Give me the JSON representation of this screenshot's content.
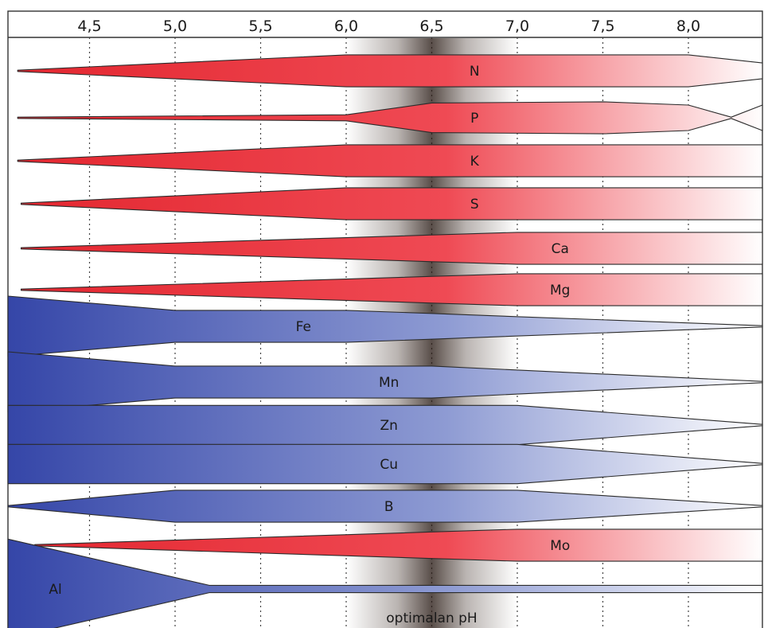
{
  "chart_data": {
    "type": "area",
    "title": "",
    "xlabel": "",
    "ylabel": "",
    "xlim": [
      4.0,
      8.45
    ],
    "x_ticks": [
      4.5,
      5.0,
      5.5,
      6.0,
      6.5,
      7.0,
      7.5,
      8.0
    ],
    "x_tick_labels": [
      "4,5",
      "5,0",
      "5,5",
      "6,0",
      "6,5",
      "7,0",
      "7,5",
      "8,0"
    ],
    "optimal_band": {
      "from": 6.0,
      "to": 7.0,
      "center": 6.5,
      "label": "optimalan pH"
    },
    "grid": "dotted vertical lines at each tick",
    "colors": {
      "macro": "#e8323c",
      "micro": "#3a4fb0",
      "band": "#3a2a22"
    },
    "series": [
      {
        "name": "N",
        "group": "macro",
        "label_x": 6.75,
        "points": [
          [
            4.08,
            0.02
          ],
          [
            6.0,
            0.53
          ],
          [
            8.0,
            0.53
          ],
          [
            8.45,
            0.26
          ]
        ]
      },
      {
        "name": "P",
        "group": "macro",
        "label_x": 6.75,
        "points": [
          [
            4.08,
            0.02
          ],
          [
            6.0,
            0.1
          ],
          [
            6.5,
            0.49
          ],
          [
            7.5,
            0.53
          ],
          [
            8.0,
            0.42
          ],
          [
            8.25,
            0.02
          ],
          [
            8.45,
            0.42
          ]
        ]
      },
      {
        "name": "K",
        "group": "macro",
        "label_x": 6.75,
        "points": [
          [
            4.08,
            0.02
          ],
          [
            6.0,
            0.53
          ],
          [
            8.45,
            0.53
          ]
        ]
      },
      {
        "name": "S",
        "group": "macro",
        "label_x": 6.75,
        "points": [
          [
            4.1,
            0.02
          ],
          [
            6.0,
            0.53
          ],
          [
            8.45,
            0.53
          ]
        ]
      },
      {
        "name": "Ca",
        "group": "macro",
        "label_x": 7.25,
        "points": [
          [
            4.1,
            0.02
          ],
          [
            7.0,
            0.53
          ],
          [
            8.45,
            0.53
          ]
        ]
      },
      {
        "name": "Mg",
        "group": "macro",
        "label_x": 7.25,
        "points": [
          [
            4.1,
            0.02
          ],
          [
            7.0,
            0.53
          ],
          [
            8.45,
            0.53
          ]
        ]
      },
      {
        "name": "Fe",
        "group": "micro",
        "label_x": 5.75,
        "points": [
          [
            4.0,
            1.0
          ],
          [
            5.0,
            0.53
          ],
          [
            6.0,
            0.53
          ],
          [
            8.45,
            0.02
          ]
        ]
      },
      {
        "name": "Mn",
        "group": "micro",
        "label_x": 6.25,
        "points": [
          [
            4.0,
            1.0
          ],
          [
            5.0,
            0.53
          ],
          [
            6.5,
            0.53
          ],
          [
            8.45,
            0.02
          ]
        ]
      },
      {
        "name": "Zn",
        "group": "micro",
        "label_x": 6.25,
        "points": [
          [
            4.0,
            0.65
          ],
          [
            7.0,
            0.65
          ],
          [
            8.45,
            0.02
          ]
        ]
      },
      {
        "name": "Cu",
        "group": "micro",
        "label_x": 6.25,
        "points": [
          [
            4.0,
            0.65
          ],
          [
            7.0,
            0.65
          ],
          [
            8.45,
            0.02
          ]
        ]
      },
      {
        "name": "B",
        "group": "micro",
        "label_x": 6.25,
        "points": [
          [
            4.0,
            0.02
          ],
          [
            5.0,
            0.53
          ],
          [
            7.0,
            0.53
          ],
          [
            8.45,
            0.02
          ]
        ]
      },
      {
        "name": "Mo",
        "group": "macro",
        "label_x": 7.25,
        "points": [
          [
            4.18,
            0.02
          ],
          [
            7.0,
            0.53
          ],
          [
            8.45,
            0.53
          ]
        ]
      },
      {
        "name": "Al",
        "group": "micro",
        "label_x": 4.3,
        "label_position": "below",
        "points": [
          [
            4.0,
            1.65
          ],
          [
            5.2,
            0.12
          ],
          [
            8.45,
            0.12
          ]
        ]
      }
    ]
  }
}
